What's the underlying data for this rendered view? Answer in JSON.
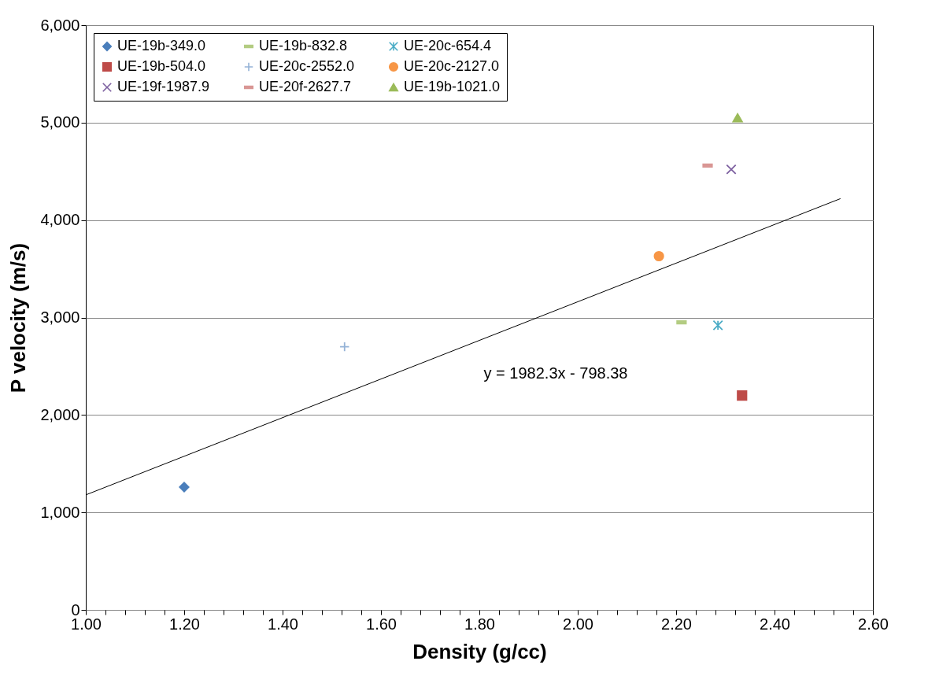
{
  "chart_data": {
    "type": "scatter",
    "xlabel": "Density (g/cc)",
    "ylabel": "P velocity (m/s)",
    "xlim": [
      1.0,
      2.6
    ],
    "ylim": [
      0,
      6000
    ],
    "xticks": [
      {
        "value": 1.0,
        "label": "1.00"
      },
      {
        "value": 1.04,
        "label": null
      },
      {
        "value": 1.08,
        "label": null
      },
      {
        "value": 1.12,
        "label": null
      },
      {
        "value": 1.16,
        "label": null
      },
      {
        "value": 1.2,
        "label": "1.20"
      },
      {
        "value": 1.24,
        "label": null
      },
      {
        "value": 1.28,
        "label": null
      },
      {
        "value": 1.32,
        "label": null
      },
      {
        "value": 1.36,
        "label": null
      },
      {
        "value": 1.4,
        "label": "1.40"
      },
      {
        "value": 1.44,
        "label": null
      },
      {
        "value": 1.48,
        "label": null
      },
      {
        "value": 1.52,
        "label": null
      },
      {
        "value": 1.56,
        "label": null
      },
      {
        "value": 1.6,
        "label": "1.60"
      },
      {
        "value": 1.64,
        "label": null
      },
      {
        "value": 1.68,
        "label": null
      },
      {
        "value": 1.72,
        "label": null
      },
      {
        "value": 1.76,
        "label": null
      },
      {
        "value": 1.8,
        "label": "1.80"
      },
      {
        "value": 1.84,
        "label": null
      },
      {
        "value": 1.88,
        "label": null
      },
      {
        "value": 1.92,
        "label": null
      },
      {
        "value": 1.96,
        "label": null
      },
      {
        "value": 2.0,
        "label": "2.00"
      },
      {
        "value": 2.04,
        "label": null
      },
      {
        "value": 2.08,
        "label": null
      },
      {
        "value": 2.12,
        "label": null
      },
      {
        "value": 2.16,
        "label": null
      },
      {
        "value": 2.2,
        "label": "2.20"
      },
      {
        "value": 2.24,
        "label": null
      },
      {
        "value": 2.28,
        "label": null
      },
      {
        "value": 2.32,
        "label": null
      },
      {
        "value": 2.36,
        "label": null
      },
      {
        "value": 2.4,
        "label": "2.40"
      },
      {
        "value": 2.44,
        "label": null
      },
      {
        "value": 2.48,
        "label": null
      },
      {
        "value": 2.52,
        "label": null
      },
      {
        "value": 2.56,
        "label": null
      },
      {
        "value": 2.6,
        "label": "2.60"
      }
    ],
    "yticks": [
      0,
      {
        "value": 1000,
        "label": "1,000"
      },
      {
        "value": 2000,
        "label": "2,000"
      },
      {
        "value": 3000,
        "label": "3,000"
      },
      {
        "value": 4000,
        "label": "4,000"
      },
      {
        "value": 5000,
        "label": "5,000"
      },
      {
        "value": 6000,
        "label": "6,000"
      }
    ],
    "grid": "y",
    "legend": "top left",
    "annotations": [
      "y = 1982.3x - 798.38"
    ],
    "series": [
      {
        "name": "UE-19b-349.0",
        "color": "#4a7ebb",
        "marker": "diamond",
        "x": [
          1.2
        ],
        "values": [
          1260
        ]
      },
      {
        "name": "UE-19b-504.0",
        "color": "#be4b48",
        "marker": "square",
        "x": [
          2.334
        ],
        "values": [
          2200
        ]
      },
      {
        "name": "UE-19f-1987.9",
        "color": "#7d60a0",
        "marker": "x",
        "x": [
          2.312
        ],
        "values": [
          4520
        ]
      },
      {
        "name": "UE-19b-832.8",
        "color": "#b3cc82",
        "x": [
          2.211
        ],
        "values": [
          2950
        ]
      },
      {
        "name": "UE-20c-2552.0",
        "color": "#95b3d7",
        "marker": "plus",
        "x": [
          1.526
        ],
        "values": [
          2700
        ]
      },
      {
        "name": "UE-20f-2627.7",
        "color": "#d99694",
        "x": [
          2.264
        ],
        "values": [
          4560
        ]
      },
      {
        "name": "UE-20c-654.4",
        "color": "#4bacc6",
        "marker": "cross",
        "x": [
          2.285
        ],
        "values": [
          2920
        ]
      },
      {
        "name": "UE-20c-2127.0",
        "color": "#f79646",
        "marker": "circle",
        "x": [
          2.165
        ],
        "values": [
          3630
        ]
      },
      {
        "name": "UE-19b-1021.0",
        "color": "#9bbb59",
        "marker": "triangle",
        "x": [
          2.325
        ],
        "values": [
          5050
        ]
      },
      {
        "type": "line",
        "color": "#000000",
        "marker": "none",
        "x": [
          1.0,
          2.534
        ],
        "values": [
          1180,
          4220
        ]
      }
    ]
  }
}
